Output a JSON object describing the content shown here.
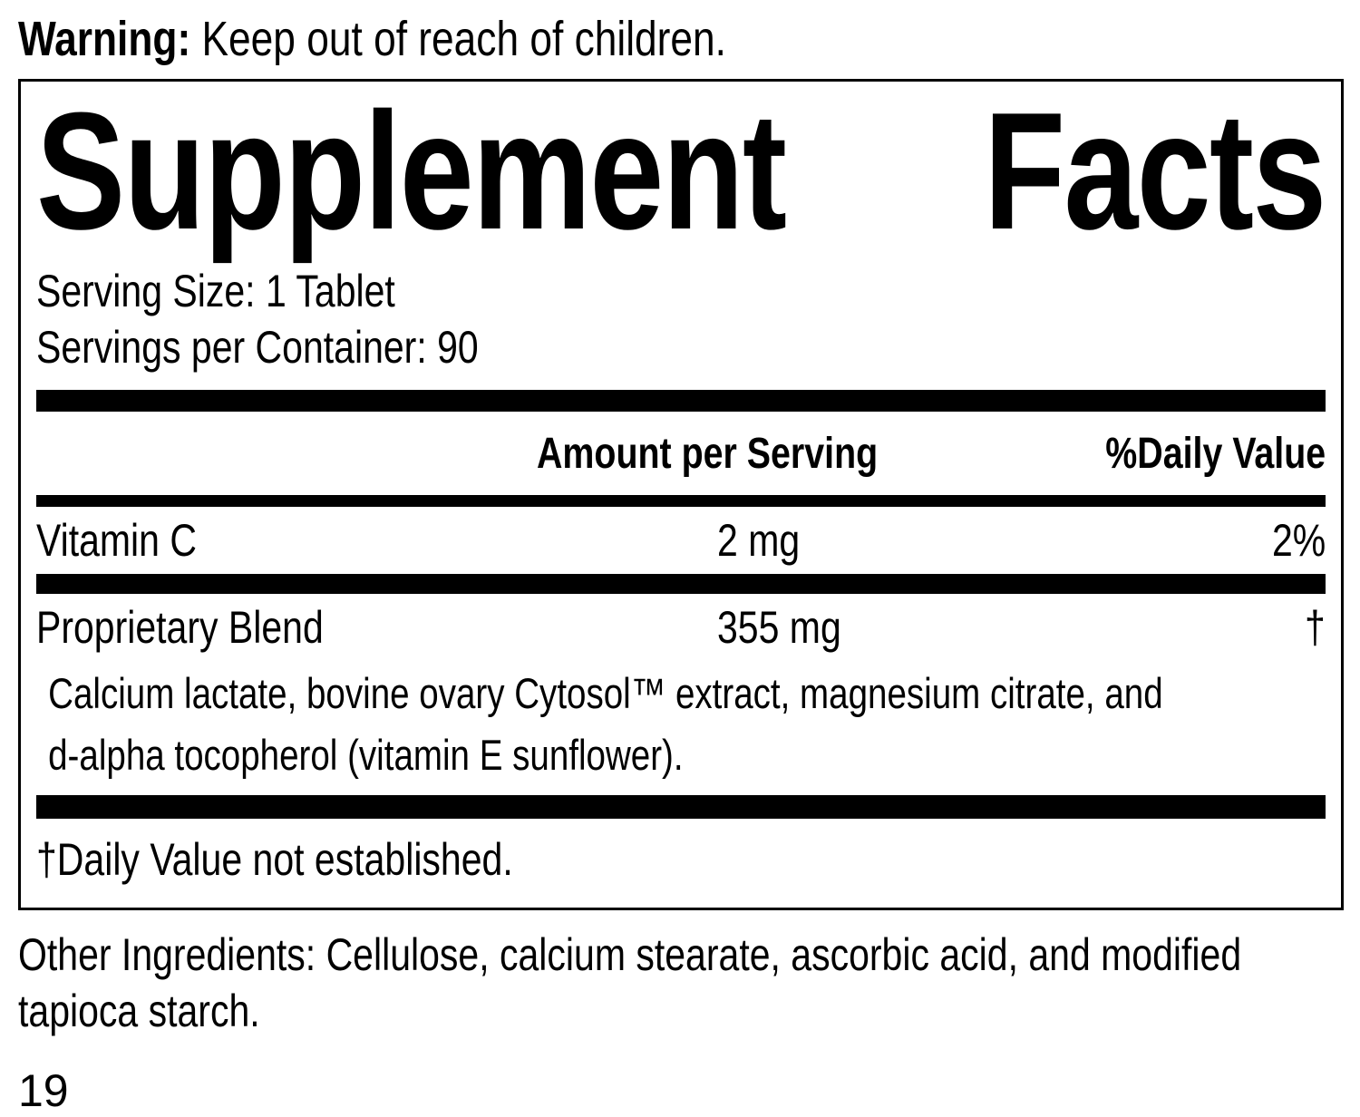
{
  "colors": {
    "text": "#000000",
    "background": "#ffffff"
  },
  "warning": {
    "label": "Warning:",
    "text": " Keep out of reach of children."
  },
  "panel": {
    "title": {
      "word1": "Supplement",
      "word2": "Facts"
    },
    "serving_size": "Serving Size: 1 Tablet",
    "servings_per_container": "Servings per Container: 90",
    "column_headers": {
      "amount": "Amount per Serving",
      "daily_value": "%Daily Value"
    },
    "rows": [
      {
        "name": "Vitamin C",
        "amount": "2 mg",
        "daily_value": "2%"
      },
      {
        "name": "Proprietary Blend",
        "amount": "355 mg",
        "daily_value": "†"
      }
    ],
    "blend_description": {
      "line1": "Calcium lactate, bovine ovary Cytosol™ extract, magnesium citrate, and",
      "line2": "d-alpha tocopherol (vitamin E sunflower)."
    },
    "footnote": "†Daily Value not established."
  },
  "other_ingredients": "Other Ingredients: Cellulose, calcium stearate, ascorbic acid, and modified tapioca starch.",
  "page_number": "19"
}
